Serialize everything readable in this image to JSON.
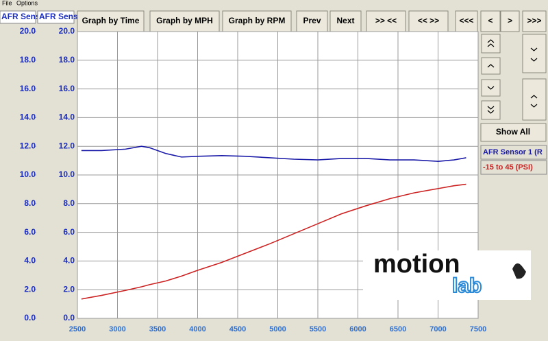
{
  "menu": [
    "File",
    "Options"
  ],
  "header_boxes": [
    "AFR Sens",
    "AFR Sens"
  ],
  "toolbar": [
    "Graph by Time",
    "Graph by MPH",
    "Graph by RPM",
    "Prev",
    "Next",
    ">> <<",
    "<< >>",
    "<<<",
    "<",
    ">",
    ">>>"
  ],
  "show_all": "Show All",
  "logo": {
    "top": "motion",
    "bottom": "lab"
  },
  "chart_data": {
    "type": "line",
    "x": [
      2550,
      2800,
      3100,
      3300,
      3400,
      3600,
      3800,
      4000,
      4300,
      4600,
      4900,
      5200,
      5500,
      5800,
      6100,
      6400,
      6700,
      7000,
      7200,
      7350
    ],
    "series": [
      {
        "name": "AFR Sensor 1 (R",
        "color": "#1a1aa8",
        "values": [
          11.7,
          11.7,
          11.8,
          12.0,
          11.9,
          11.5,
          11.25,
          11.3,
          11.35,
          11.3,
          11.2,
          11.1,
          11.05,
          11.15,
          11.15,
          11.05,
          11.05,
          10.95,
          11.05,
          11.2
        ]
      },
      {
        "name": "-15 to 45 (PSI)",
        "color": "#cc2222",
        "values": [
          1.35,
          1.6,
          1.95,
          2.2,
          2.35,
          2.6,
          2.95,
          3.35,
          3.9,
          4.55,
          5.2,
          5.9,
          6.6,
          7.3,
          7.85,
          8.35,
          8.75,
          9.05,
          9.25,
          9.35
        ]
      }
    ],
    "xlim": [
      2500,
      7500
    ],
    "xticks": [
      2500,
      3000,
      3500,
      4000,
      4500,
      5000,
      5500,
      6000,
      6500,
      7000,
      7500
    ],
    "ylim": [
      0,
      20
    ],
    "yticks": [
      {
        "value": 0,
        "label": "0.0"
      },
      {
        "value": 2,
        "label": "2.0"
      },
      {
        "value": 4,
        "label": "4.0"
      },
      {
        "value": 6,
        "label": "6.0"
      },
      {
        "value": 8,
        "label": "8.0"
      },
      {
        "value": 10,
        "label": "10.0"
      },
      {
        "value": 12,
        "label": "12.0"
      },
      {
        "value": 14,
        "label": "14.0"
      },
      {
        "value": 16,
        "label": "16.0"
      },
      {
        "value": 18,
        "label": "18.0"
      },
      {
        "value": 20,
        "label": "20.0"
      }
    ],
    "y2lim": [
      0,
      20
    ],
    "y2ticks": [
      {
        "value": 0,
        "label": "0.0"
      },
      {
        "value": 2,
        "label": "2.0"
      },
      {
        "value": 4,
        "label": "4.0"
      },
      {
        "value": 6,
        "label": "6.0"
      },
      {
        "value": 8,
        "label": "8.0"
      },
      {
        "value": 10,
        "label": "10.0"
      },
      {
        "value": 12,
        "label": "12.0"
      },
      {
        "value": 14,
        "label": "14.0"
      },
      {
        "value": 16,
        "label": "16.0"
      },
      {
        "value": 18,
        "label": "18.0"
      },
      {
        "value": 20,
        "label": "20.0"
      }
    ],
    "grid": true
  }
}
